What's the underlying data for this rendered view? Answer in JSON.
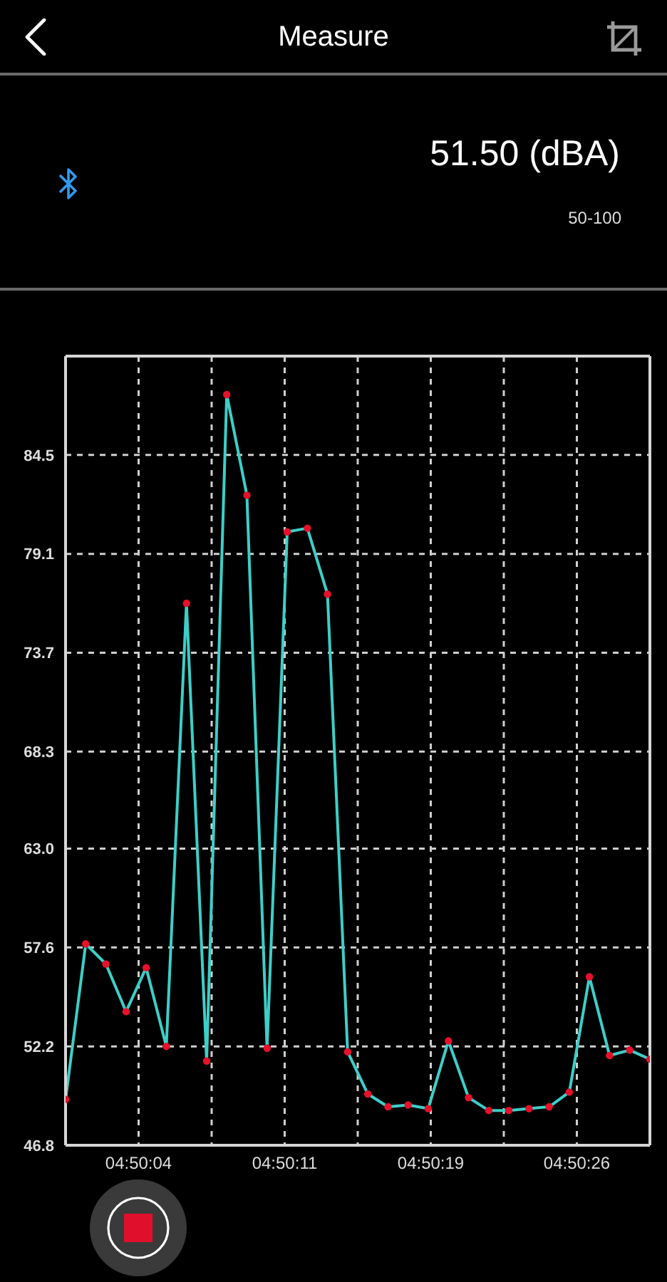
{
  "chart_data": {
    "type": "line",
    "title": "Measure",
    "subtitle": "51.50 (dBA)",
    "annotations": [
      "50-100"
    ],
    "x": [
      4.833472,
      4.83375,
      4.834028,
      4.834306,
      4.834583,
      4.834861,
      4.835139,
      4.835417,
      4.835694,
      4.835972,
      4.83625,
      4.836528,
      4.836806,
      4.837083,
      4.837361,
      4.837639,
      4.837917,
      4.838194,
      4.838472,
      4.83875,
      4.839028,
      4.839306,
      4.839583,
      4.839861,
      4.840139,
      4.840417,
      4.840694,
      4.840972,
      4.84125,
      4.841528
    ],
    "series": [
      {
        "color": "#3ccfc8",
        "colors": [
          "#e8102a",
          "#e8102a",
          "#e8102a",
          "#e8102a",
          "#e8102a",
          "#e8102a",
          "#e8102a",
          "#e8102a",
          "#e8102a",
          "#e8102a",
          "#e8102a",
          "#e8102a",
          "#e8102a",
          "#e8102a",
          "#e8102a",
          "#e8102a",
          "#e8102a",
          "#e8102a",
          "#e8102a",
          "#e8102a",
          "#e8102a",
          "#e8102a",
          "#e8102a",
          "#e8102a",
          "#e8102a",
          "#e8102a",
          "#e8102a",
          "#e8102a",
          "#e8102a",
          "#e8102a"
        ],
        "values": [
          49.3,
          57.8,
          56.7,
          54.1,
          56.5,
          52.2,
          76.4,
          51.4,
          87.8,
          82.3,
          52.1,
          80.3,
          80.5,
          76.9,
          51.9,
          49.6,
          48.9,
          49.0,
          48.8,
          52.5,
          49.4,
          48.7,
          48.7,
          48.8,
          48.9,
          49.7,
          56.0,
          51.7,
          52.0,
          51.5
        ]
      }
    ],
    "xlim": [
      4.833472,
      4.841528
    ],
    "xticks": [
      {
        "value": 4.834479,
        "label": "04:50:04"
      },
      {
        "value": 4.835486,
        "label": null
      },
      {
        "value": 4.836493,
        "label": "04:50:11"
      },
      {
        "value": 4.8375,
        "label": null
      },
      {
        "value": 4.838507,
        "label": "04:50:19"
      },
      {
        "value": 4.839514,
        "label": null
      },
      {
        "value": 4.840521,
        "label": "04:50:26"
      }
    ],
    "ylim": [
      46.8,
      89.9
    ],
    "yticks": [
      46.8,
      52.2,
      57.6,
      {
        "value": 63,
        "label": "63.0"
      },
      68.3,
      73.7,
      79.1,
      84.5
    ],
    "grid": true,
    "marker": "circle",
    "line_style": "solid"
  }
}
